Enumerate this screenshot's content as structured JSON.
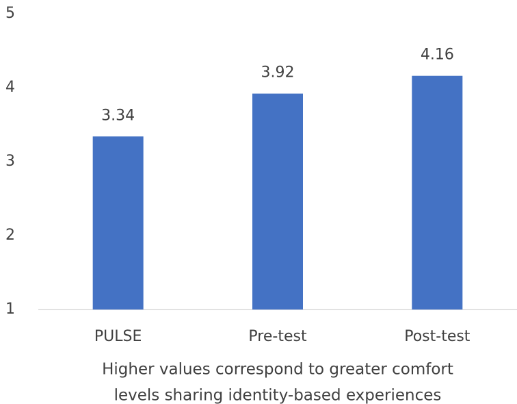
{
  "chart_data": {
    "type": "bar",
    "categories": [
      "PULSE",
      "Pre-test",
      "Post-test"
    ],
    "values": [
      3.34,
      3.92,
      4.16
    ],
    "color": "#4472c4",
    "ylim": [
      1,
      5
    ],
    "yticks": [
      1,
      2,
      3,
      4,
      5
    ],
    "grid": false,
    "xlabel": [
      "Higher values correspond to greater comfort",
      "levels sharing identity-based experiences"
    ]
  }
}
